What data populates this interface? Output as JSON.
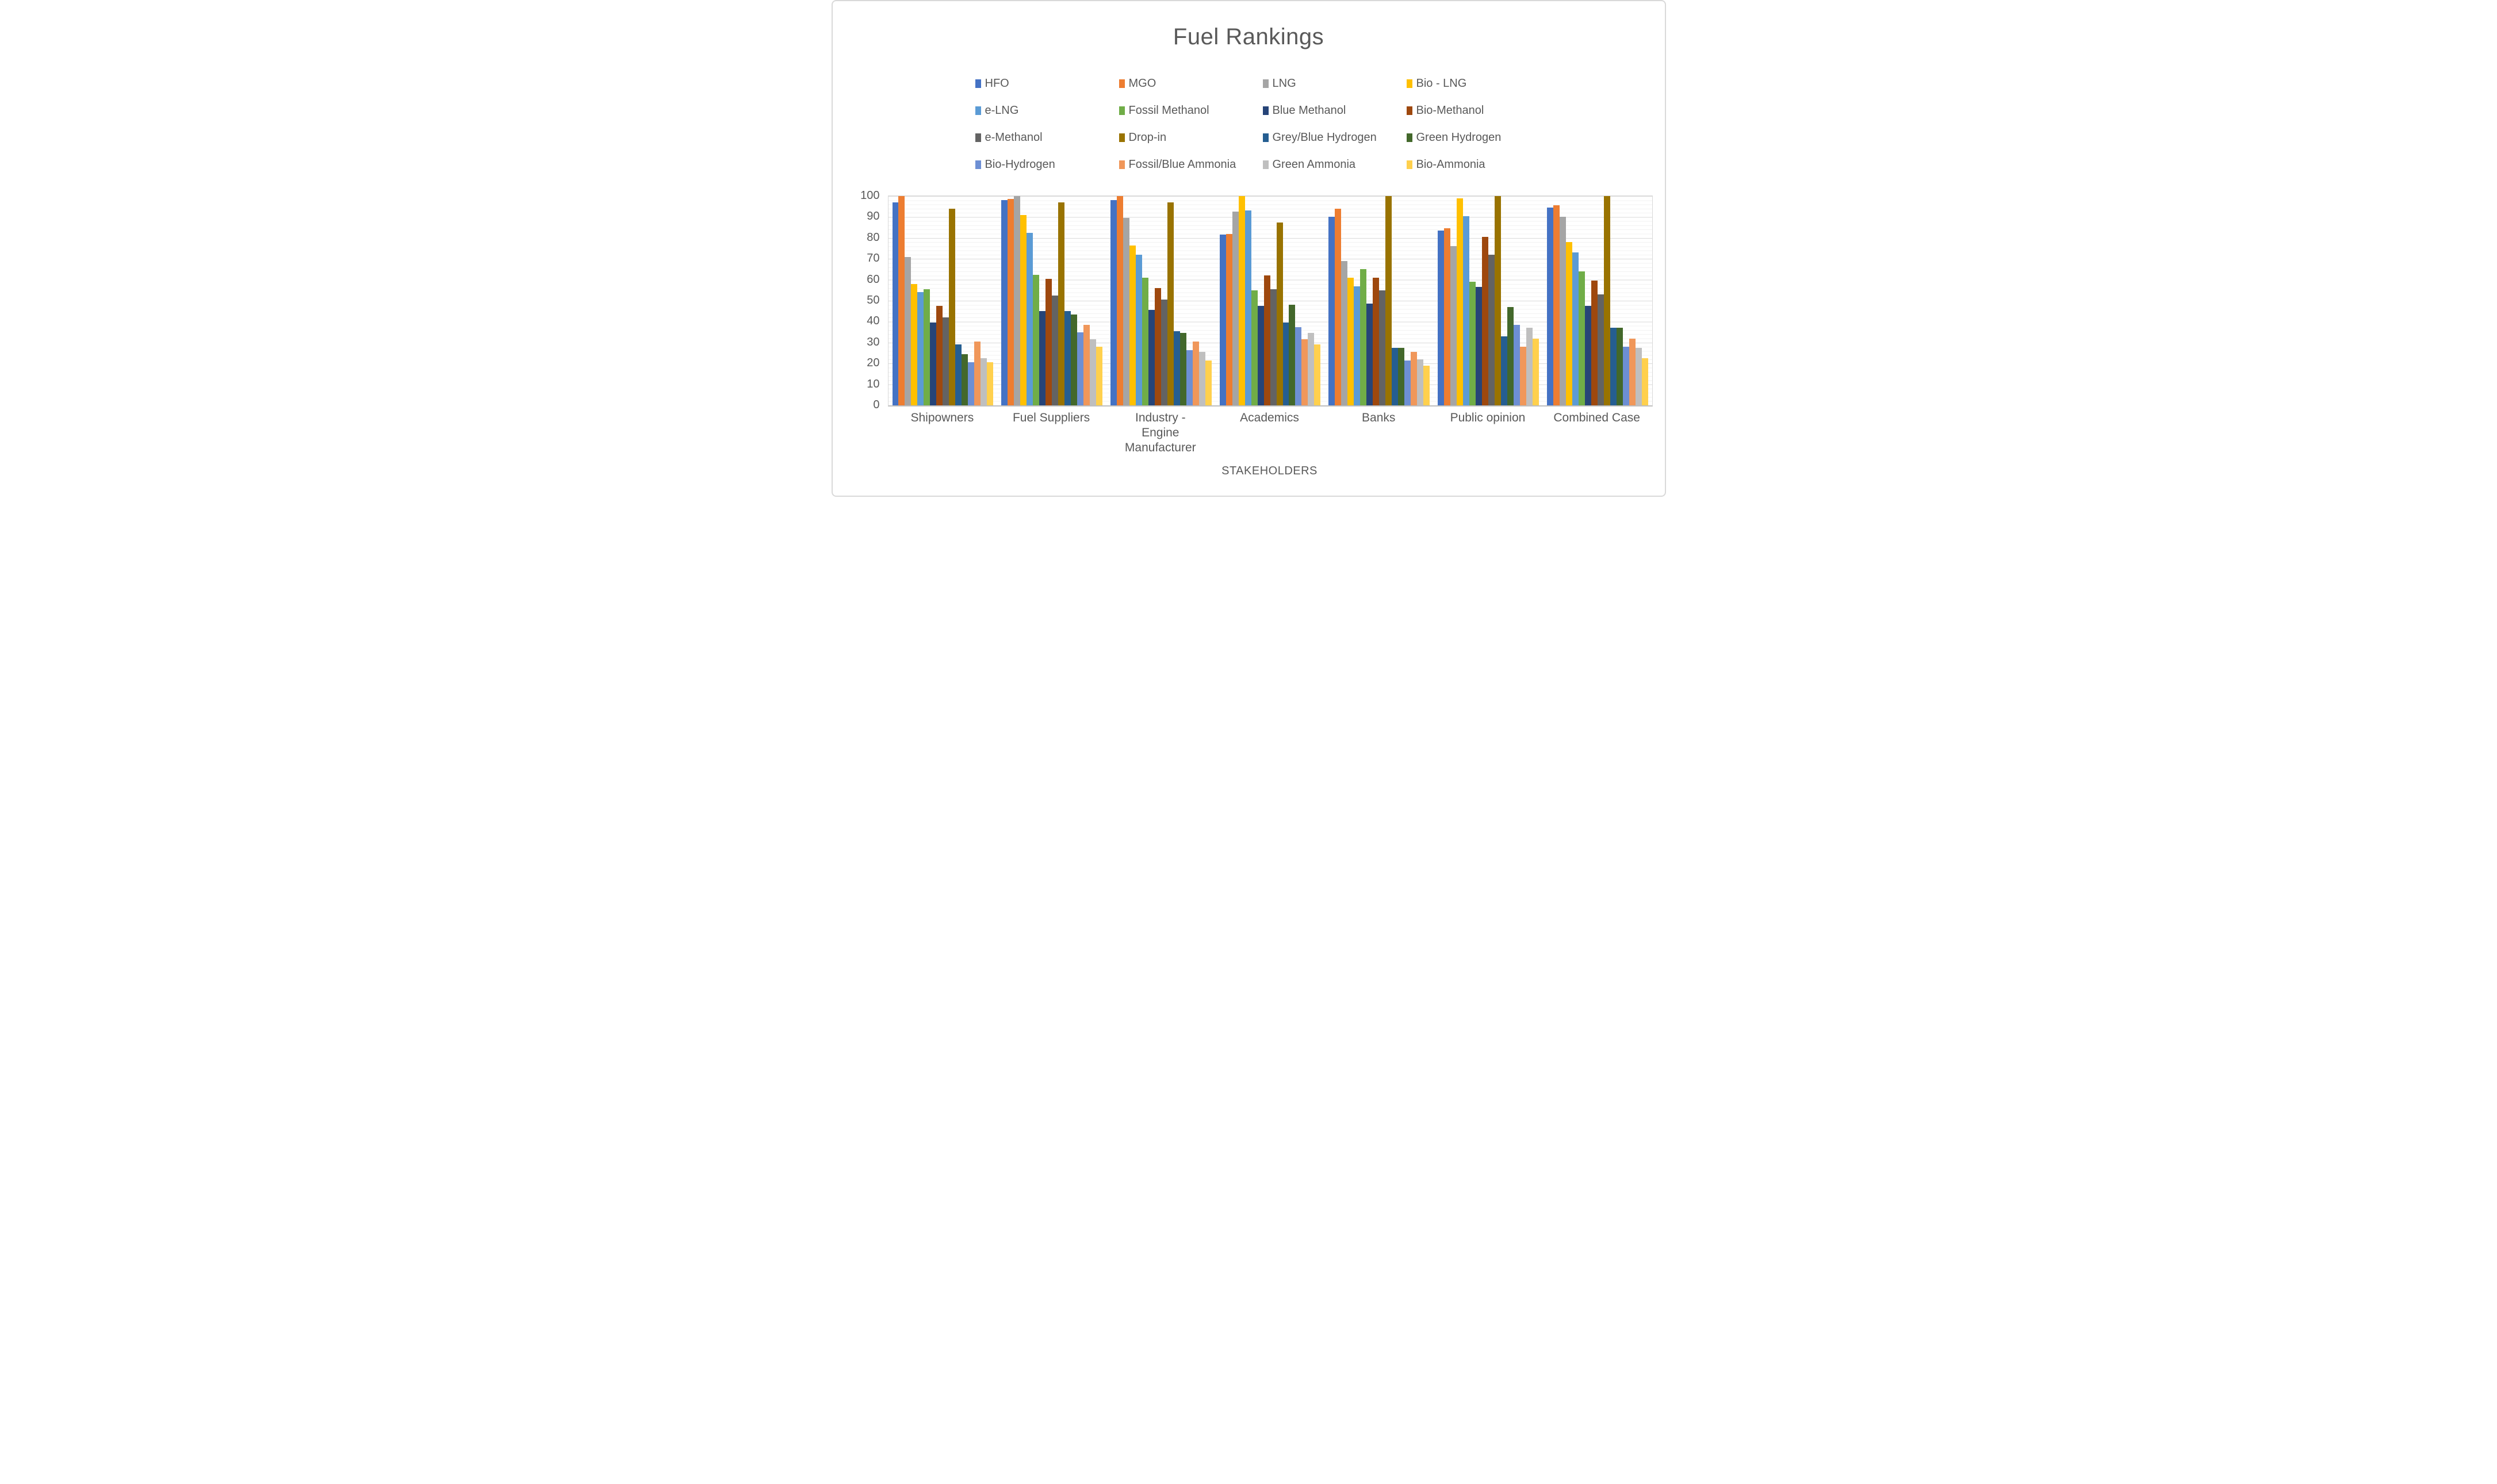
{
  "chart_data": {
    "type": "bar",
    "title": "Fuel Rankings",
    "xlabel": "STAKEHOLDERS",
    "ylabel": "",
    "ylim": [
      0,
      100
    ],
    "ytick_step": 10,
    "yticks": [
      "0",
      "10",
      "20",
      "30",
      "40",
      "50",
      "60",
      "70",
      "80",
      "90",
      "100"
    ],
    "grid": {
      "major_every": 10,
      "minor_every": 2,
      "major_color": "#d9d9d9",
      "minor_color": "#f2f2f2"
    },
    "legend_position": "top",
    "legend_columns": 4,
    "categories": [
      "Shipowners",
      "Fuel Suppliers",
      "Industry - Engine Manufacturer",
      "Academics",
      "Banks",
      "Public opinion",
      "Combined Case"
    ],
    "series": [
      {
        "name": "HFO",
        "color": "#4472C4",
        "values": [
          97,
          98,
          98,
          81.5,
          90,
          83.5,
          94.5
        ]
      },
      {
        "name": "MGO",
        "color": "#ED7D31",
        "values": [
          100,
          98.5,
          100,
          82,
          94,
          84.5,
          95.5
        ]
      },
      {
        "name": "LNG",
        "color": "#A5A5A5",
        "values": [
          71,
          100,
          89.5,
          92.5,
          69,
          76,
          90
        ]
      },
      {
        "name": "Bio - LNG",
        "color": "#FFC000",
        "values": [
          58,
          91,
          76.5,
          100,
          61,
          99,
          78
        ]
      },
      {
        "name": "e-LNG",
        "color": "#5B9BD5",
        "values": [
          54,
          82.5,
          72,
          93,
          57,
          90.5,
          73
        ]
      },
      {
        "name": "Fossil Methanol",
        "color": "#70AD47",
        "values": [
          55.5,
          62.5,
          61,
          55,
          65,
          59,
          64
        ]
      },
      {
        "name": "Blue Methanol",
        "color": "#264478",
        "values": [
          39.5,
          45,
          45.5,
          47.5,
          48.5,
          56.5,
          47.5
        ]
      },
      {
        "name": "Bio-Methanol",
        "color": "#9E480E",
        "values": [
          47.5,
          60.5,
          56,
          62,
          61,
          80.5,
          59.5
        ]
      },
      {
        "name": "e-Methanol",
        "color": "#636363",
        "values": [
          42,
          52.5,
          50.5,
          55.5,
          55,
          72,
          53
        ]
      },
      {
        "name": "Drop-in",
        "color": "#997300",
        "values": [
          94,
          97,
          97,
          87.5,
          100,
          100,
          100
        ]
      },
      {
        "name": "Grey/Blue Hydrogen",
        "color": "#255E91",
        "values": [
          29,
          45,
          35.5,
          39.5,
          27.5,
          33,
          37
        ]
      },
      {
        "name": "Green Hydrogen",
        "color": "#43682B",
        "values": [
          24.5,
          43.5,
          34.5,
          48,
          27.5,
          47,
          37
        ]
      },
      {
        "name": "Bio-Hydrogen",
        "color": "#6D8FD4",
        "values": [
          20.5,
          35,
          26.5,
          37.5,
          21.5,
          38.5,
          28
        ]
      },
      {
        "name": "Fossil/Blue Ammonia",
        "color": "#F0975A",
        "values": [
          30.5,
          38.5,
          30.5,
          31.5,
          25.5,
          28,
          32
        ]
      },
      {
        "name": "Green Ammonia",
        "color": "#BFBFBF",
        "values": [
          22.5,
          31.5,
          25.5,
          34.5,
          22,
          37,
          27.5
        ]
      },
      {
        "name": "Bio-Ammonia",
        "color": "#FFD04D",
        "values": [
          20.5,
          28,
          21.5,
          29,
          19,
          32,
          22.5
        ]
      }
    ]
  },
  "text_color": "#595959",
  "axis_line_color": "#bfbfbf"
}
